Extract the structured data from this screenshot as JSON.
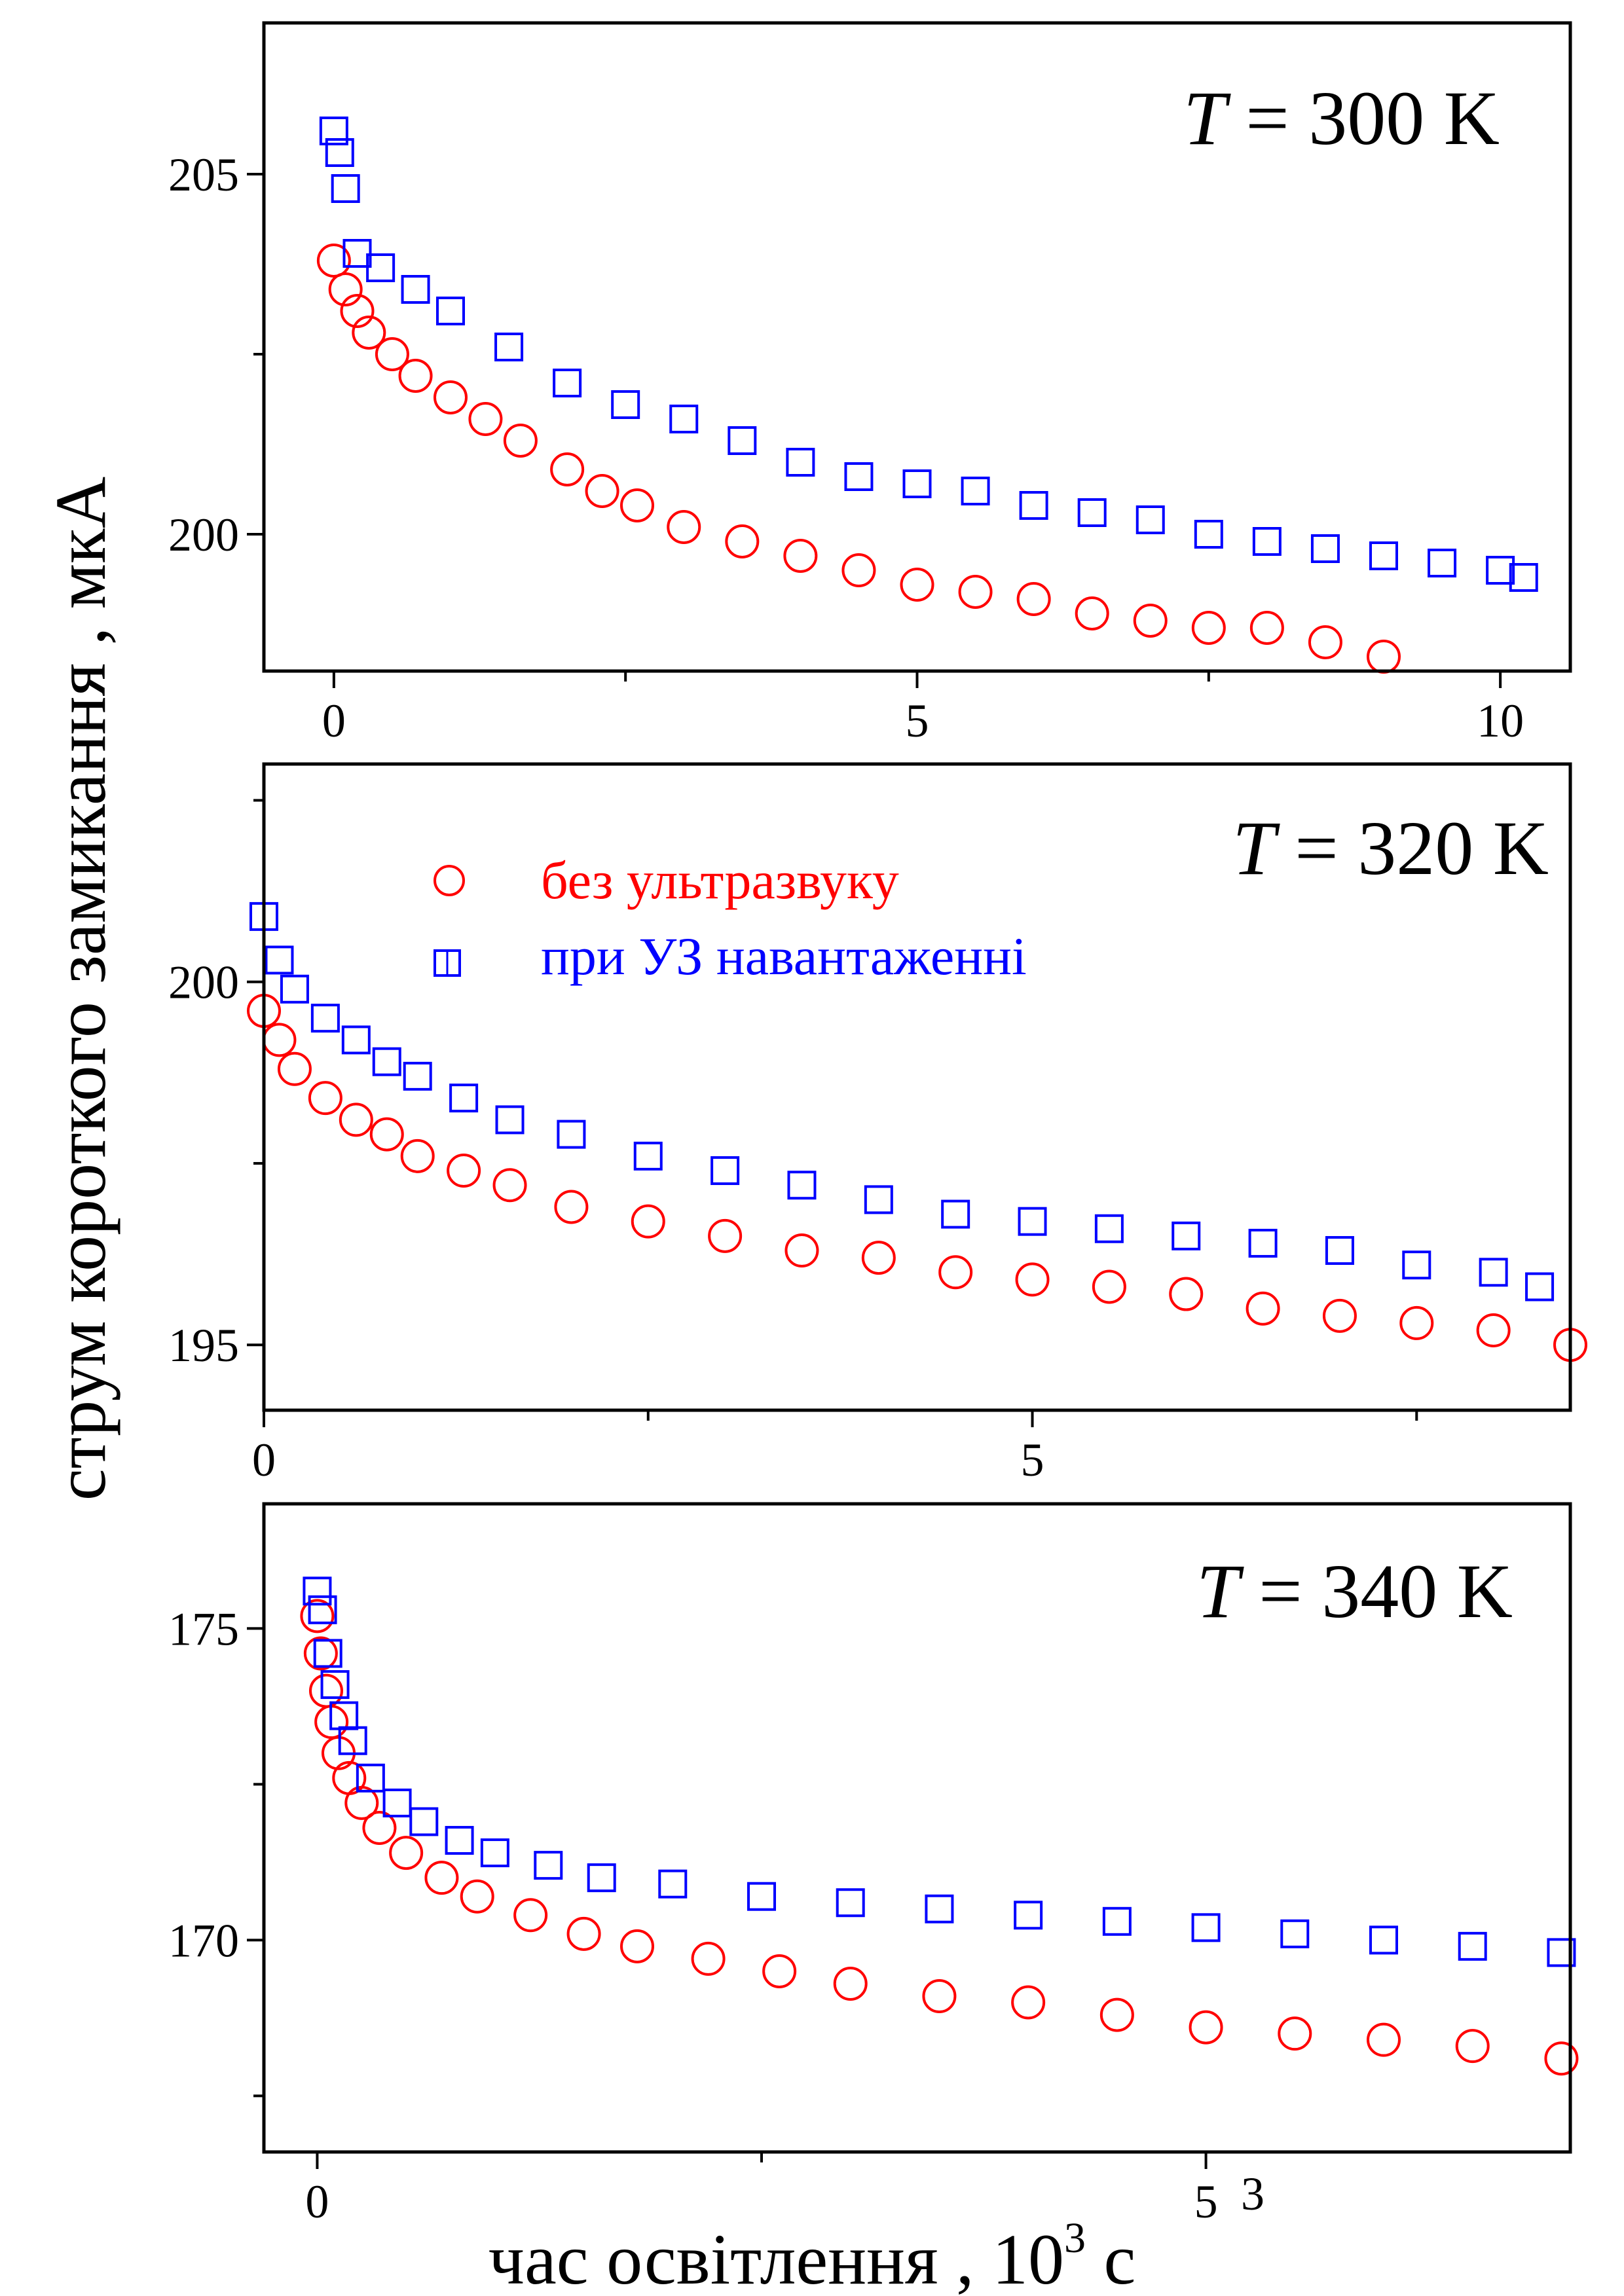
{
  "y_axis_title": "струм короткого замикання , мкА",
  "x_axis_title": {
    "main": "час освітлення , 10",
    "superscript": "3",
    "unit": " с"
  },
  "stray_mark": "3",
  "legend": [
    {
      "label": "без ультразвуку",
      "color": "#ff0000",
      "marker": "circle"
    },
    {
      "label": "при УЗ навантаженні",
      "color": "#0000ff",
      "marker": "square"
    }
  ],
  "chart_data": [
    {
      "type": "scatter",
      "title": "T = 300 K",
      "title_italic": "T",
      "title_rest": " = 300 K",
      "xlim": [
        -0.6,
        10.6
      ],
      "ylim": [
        198.1,
        207.1
      ],
      "xticks": [
        0,
        5,
        10
      ],
      "yticks": [
        200,
        205
      ],
      "series": [
        {
          "name": "без ультразвуку",
          "color": "#ff0000",
          "marker": "circle",
          "x": [
            0.0,
            0.1,
            0.2,
            0.3,
            0.5,
            0.7,
            1.0,
            1.3,
            1.6,
            2.0,
            2.3,
            2.6,
            3.0,
            3.5,
            4.0,
            4.5,
            5.0,
            5.5,
            6.0,
            6.5,
            7.0,
            7.5,
            8.0,
            8.5,
            9.0
          ],
          "y": [
            203.8,
            203.4,
            203.1,
            202.8,
            202.5,
            202.2,
            201.9,
            201.6,
            201.3,
            200.9,
            200.6,
            200.4,
            200.1,
            199.9,
            199.7,
            199.5,
            199.3,
            199.2,
            199.1,
            198.9,
            198.8,
            198.7,
            198.7,
            198.5,
            198.3
          ]
        },
        {
          "name": "при УЗ навантаженні",
          "color": "#0000ff",
          "marker": "square",
          "x": [
            0.0,
            0.05,
            0.1,
            0.2,
            0.4,
            0.7,
            1.0,
            1.5,
            2.0,
            2.5,
            3.0,
            3.5,
            4.0,
            4.5,
            5.0,
            5.5,
            6.0,
            6.5,
            7.0,
            7.5,
            8.0,
            8.5,
            9.0,
            9.5,
            10.0,
            10.2
          ],
          "y": [
            205.6,
            205.3,
            204.8,
            203.9,
            203.7,
            203.4,
            203.1,
            202.6,
            202.1,
            201.8,
            201.6,
            201.3,
            201.0,
            200.8,
            200.7,
            200.6,
            200.4,
            200.3,
            200.2,
            200.0,
            199.9,
            199.8,
            199.7,
            199.6,
            199.5,
            199.4
          ]
        }
      ]
    },
    {
      "type": "scatter",
      "title": "T = 320 K",
      "title_italic": "T",
      "title_rest": " = 320 K",
      "xlim": [
        0,
        8.5
      ],
      "ylim": [
        194.1,
        203.0
      ],
      "xticks": [
        0,
        5
      ],
      "yticks": [
        195,
        200
      ],
      "series": [
        {
          "name": "без ультразвуку",
          "color": "#ff0000",
          "marker": "circle",
          "x": [
            0.0,
            0.1,
            0.2,
            0.4,
            0.6,
            0.8,
            1.0,
            1.3,
            1.6,
            2.0,
            2.5,
            3.0,
            3.5,
            4.0,
            4.5,
            5.0,
            5.5,
            6.0,
            6.5,
            7.0,
            7.5,
            8.0,
            8.5
          ],
          "y": [
            199.6,
            199.2,
            198.8,
            198.4,
            198.1,
            197.9,
            197.6,
            197.4,
            197.2,
            196.9,
            196.7,
            196.5,
            196.3,
            196.2,
            196.0,
            195.9,
            195.8,
            195.7,
            195.5,
            195.4,
            195.3,
            195.2,
            195.0
          ]
        },
        {
          "name": "при УЗ навантаженні",
          "color": "#0000ff",
          "marker": "square",
          "x": [
            0.0,
            0.1,
            0.2,
            0.4,
            0.6,
            0.8,
            1.0,
            1.3,
            1.6,
            2.0,
            2.5,
            3.0,
            3.5,
            4.0,
            4.5,
            5.0,
            5.5,
            6.0,
            6.5,
            7.0,
            7.5,
            8.0,
            8.3
          ],
          "y": [
            200.9,
            200.3,
            199.9,
            199.5,
            199.2,
            198.9,
            198.7,
            198.4,
            198.1,
            197.9,
            197.6,
            197.4,
            197.2,
            197.0,
            196.8,
            196.7,
            196.6,
            196.5,
            196.4,
            196.3,
            196.1,
            196.0,
            195.8
          ]
        }
      ]
    },
    {
      "type": "scatter",
      "title": "T = 340 K",
      "title_italic": "T",
      "title_rest": " = 340 K",
      "xlim": [
        -0.3,
        7.05
      ],
      "ylim": [
        166.6,
        177.0
      ],
      "xticks": [
        0,
        5
      ],
      "yticks": [
        170,
        175
      ],
      "series": [
        {
          "name": "без ультразвуку",
          "color": "#ff0000",
          "marker": "circle",
          "x": [
            0.0,
            0.02,
            0.05,
            0.08,
            0.12,
            0.18,
            0.25,
            0.35,
            0.5,
            0.7,
            0.9,
            1.2,
            1.5,
            1.8,
            2.2,
            2.6,
            3.0,
            3.5,
            4.0,
            4.5,
            5.0,
            5.5,
            6.0,
            6.5,
            7.0
          ],
          "y": [
            175.2,
            174.6,
            174.0,
            173.5,
            173.0,
            172.6,
            172.2,
            171.8,
            171.4,
            171.0,
            170.7,
            170.4,
            170.1,
            169.9,
            169.7,
            169.5,
            169.3,
            169.1,
            169.0,
            168.8,
            168.6,
            168.5,
            168.4,
            168.3,
            168.1
          ]
        },
        {
          "name": "при УЗ навантаженні",
          "color": "#0000ff",
          "marker": "square",
          "x": [
            0.0,
            0.03,
            0.06,
            0.1,
            0.15,
            0.2,
            0.3,
            0.45,
            0.6,
            0.8,
            1.0,
            1.3,
            1.6,
            2.0,
            2.5,
            3.0,
            3.5,
            4.0,
            4.5,
            5.0,
            5.5,
            6.0,
            6.5,
            7.0
          ],
          "y": [
            175.6,
            175.3,
            174.6,
            174.1,
            173.6,
            173.2,
            172.6,
            172.2,
            171.9,
            171.6,
            171.4,
            171.2,
            171.0,
            170.9,
            170.7,
            170.6,
            170.5,
            170.4,
            170.3,
            170.2,
            170.1,
            170.0,
            169.9,
            169.8
          ]
        }
      ]
    }
  ]
}
